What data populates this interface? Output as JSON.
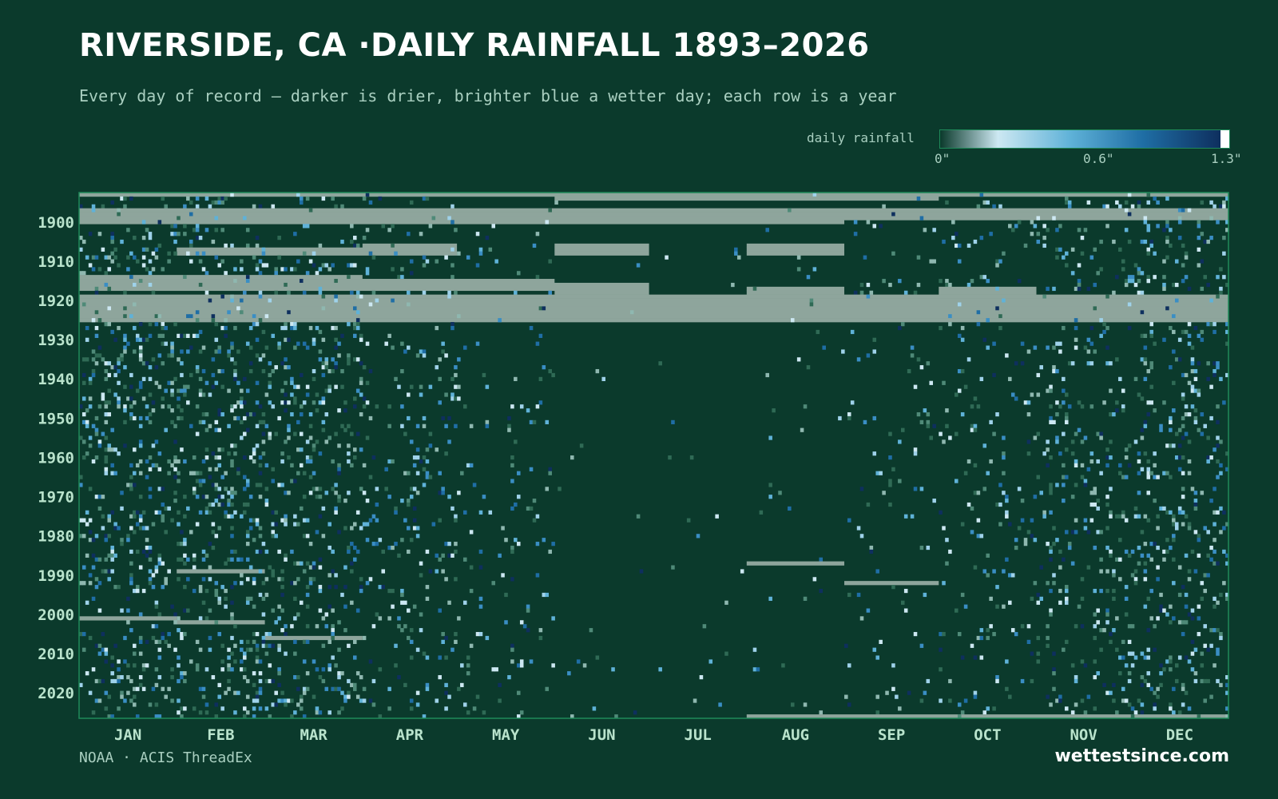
{
  "title": "RIVERSIDE, CA ·DAILY RAINFALL 1893–2026",
  "subtitle": "Every day of record — darker is drier, brighter blue a wetter day; each row is a year",
  "legend": {
    "label": "daily rainfall",
    "ticks": [
      "0\"",
      "0.6\"",
      "1.3\""
    ],
    "colors": [
      "#0b3a2c",
      "#cde8f2",
      "#5fb2d8",
      "#1f6ea5",
      "#0e2f5e",
      "#ffffff"
    ]
  },
  "source": "NOAA · ACIS ThreadEx",
  "brand": "wettestsince.com",
  "colors": {
    "background": "#0b3a2c",
    "missing": "#8ea59c",
    "frame": "#1f8a5a",
    "axis_text": "#b9e3cc"
  },
  "chart_data": {
    "type": "heatmap",
    "title": "RIVERSIDE, CA ·DAILY RAINFALL 1893–2026",
    "year_range": [
      1893,
      2026
    ],
    "x_ticks": [
      "JAN",
      "FEB",
      "MAR",
      "APR",
      "MAY",
      "JUN",
      "JUL",
      "AUG",
      "SEP",
      "OCT",
      "NOV",
      "DEC"
    ],
    "y_ticks": [
      1900,
      1910,
      1920,
      1930,
      1940,
      1950,
      1960,
      1970,
      1980,
      1990,
      2000,
      2010,
      2020
    ],
    "color_range": [
      0,
      1.3
    ],
    "units": "in",
    "monthly_rain_frequency": [
      0.14,
      0.15,
      0.13,
      0.08,
      0.035,
      0.01,
      0.006,
      0.012,
      0.025,
      0.05,
      0.09,
      0.12
    ],
    "missing_periods": [
      {
        "from": "1893-01-01",
        "to": "1893-12-31",
        "note": "partial record"
      },
      {
        "from": "1894-06-01",
        "to": "1894-09-30"
      },
      {
        "from": "1897-01-01",
        "to": "1899-12-31"
      },
      {
        "from": "1900-01-01",
        "to": "1900-08-31"
      },
      {
        "from": "1907-02-01",
        "to": "1908-03-31"
      },
      {
        "from": "1906-04-01",
        "to": "1908-04-30"
      },
      {
        "from": "1906-06-01",
        "to": "1908-06-30"
      },
      {
        "from": "1906-08-01",
        "to": "1908-08-31"
      },
      {
        "from": "1914-01-01",
        "to": "1917-03-31"
      },
      {
        "from": "1915-04-01",
        "to": "1917-05-31"
      },
      {
        "from": "1916-06-01",
        "to": "1925-06-30"
      },
      {
        "from": "1917-08-01",
        "to": "1925-08-31"
      },
      {
        "from": "1917-10-01",
        "to": "1925-10-31"
      },
      {
        "from": "1919-01-01",
        "to": "1925-12-31"
      },
      {
        "from": "1987-08-01",
        "to": "1987-08-31"
      },
      {
        "from": "1989-02-01",
        "to": "1989-02-28"
      },
      {
        "from": "1992-09-01",
        "to": "1992-09-30"
      },
      {
        "from": "2001-01-01",
        "to": "2001-01-31"
      },
      {
        "from": "2002-02-01",
        "to": "2002-02-28"
      },
      {
        "from": "2006-03-01",
        "to": "2006-03-31"
      },
      {
        "from": "2026-08-01",
        "to": "2026-12-31",
        "note": "not yet observed"
      }
    ]
  }
}
